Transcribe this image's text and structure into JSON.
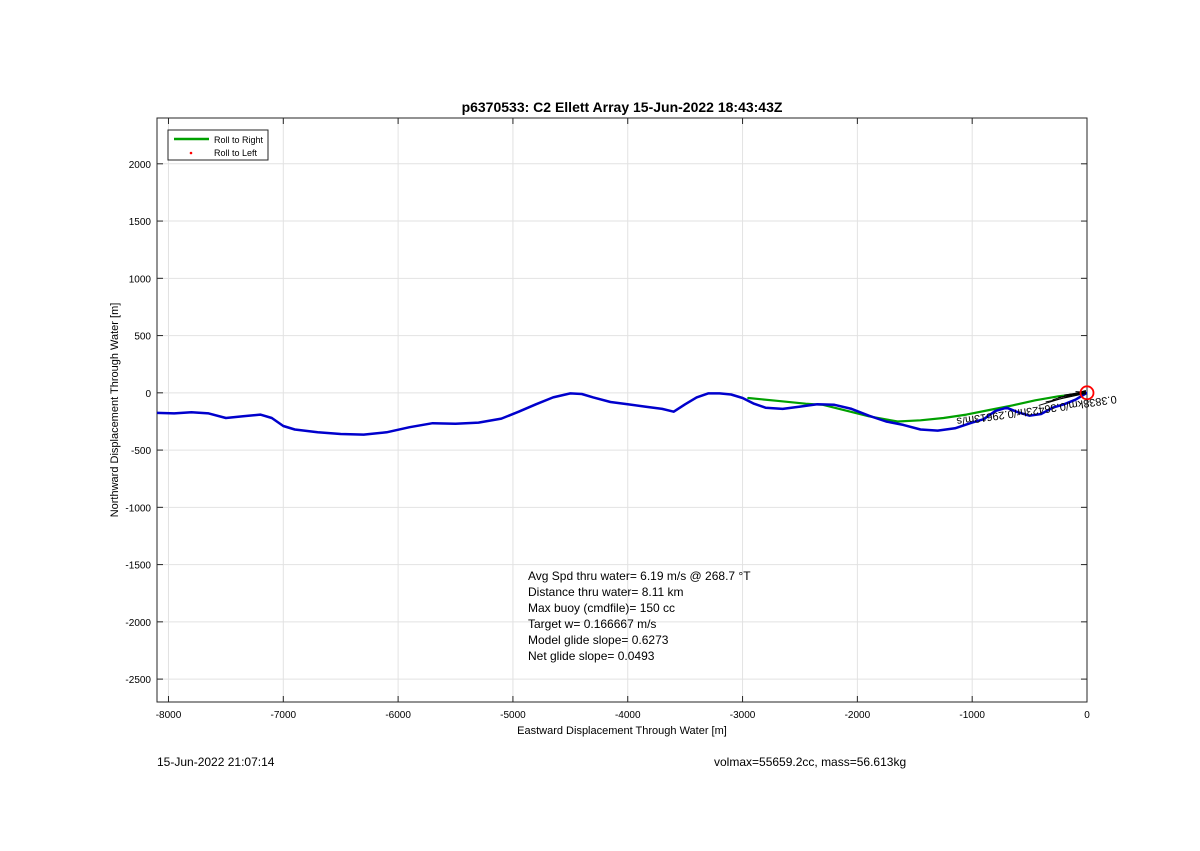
{
  "chart_data": {
    "type": "line",
    "title": "p6370533: C2 Ellett Array 15-Jun-2022 18:43:43Z",
    "xlabel": "Eastward Displacement Through Water [m]",
    "ylabel": "Northward Displacement Through Water [m]",
    "xlim": [
      -8100,
      0
    ],
    "ylim": [
      -2700,
      2400
    ],
    "xticks": [
      -8000,
      -7000,
      -6000,
      -5000,
      -4000,
      -3000,
      -2000,
      -1000,
      0
    ],
    "yticks": [
      -2500,
      -2000,
      -1500,
      -1000,
      -500,
      0,
      500,
      1000,
      1500,
      2000
    ],
    "grid": true,
    "legend_position": "top-left",
    "legend": [
      {
        "label": "Roll to Right",
        "color": "#00a000",
        "style": "line"
      },
      {
        "label": "Roll to Left",
        "color": "#ff0000",
        "style": "dot"
      }
    ],
    "series": [
      {
        "name": "Roll to Right",
        "color": "#00a000",
        "x": [
          -2950,
          -2700,
          -2450,
          -2300,
          -2100,
          -1900,
          -1650,
          -1450,
          -1250,
          -1050,
          -850,
          -650,
          -450,
          -250,
          -80
        ],
        "y": [
          -45,
          -70,
          -95,
          -105,
          -155,
          -205,
          -250,
          -240,
          -220,
          -190,
          -150,
          -110,
          -65,
          -30,
          -10
        ]
      },
      {
        "name": "track",
        "color": "#0000cc",
        "x": [
          -8100,
          -7950,
          -7800,
          -7650,
          -7500,
          -7350,
          -7200,
          -7100,
          -7000,
          -6900,
          -6700,
          -6500,
          -6300,
          -6100,
          -5900,
          -5700,
          -5500,
          -5300,
          -5100,
          -4950,
          -4800,
          -4650,
          -4500,
          -4400,
          -4300,
          -4150,
          -4000,
          -3850,
          -3700,
          -3600,
          -3500,
          -3400,
          -3300,
          -3200,
          -3100,
          -3000,
          -2900,
          -2800,
          -2650,
          -2500,
          -2350,
          -2200,
          -2050,
          -1900,
          -1750,
          -1600,
          -1450,
          -1300,
          -1150,
          -1000,
          -900,
          -800,
          -700,
          -600,
          -500,
          -400,
          -300,
          -200,
          -100,
          0
        ],
        "y": [
          -175,
          -180,
          -170,
          -180,
          -220,
          -205,
          -190,
          -220,
          -290,
          -320,
          -345,
          -360,
          -365,
          -345,
          -300,
          -265,
          -270,
          -260,
          -225,
          -165,
          -100,
          -40,
          -5,
          -10,
          -40,
          -80,
          -100,
          -120,
          -140,
          -165,
          -100,
          -40,
          -5,
          -5,
          -15,
          -45,
          -95,
          -130,
          -140,
          -120,
          -100,
          -105,
          -140,
          -200,
          -250,
          -280,
          -320,
          -330,
          -310,
          -260,
          -230,
          -160,
          -130,
          -170,
          -200,
          -185,
          -130,
          -100,
          -60,
          0
        ]
      }
    ],
    "start_marker": {
      "x": 0,
      "y": 0,
      "color": "#ff0000"
    },
    "current_label": "0.3838km/0.36423hr/0.29613m/s",
    "stats_lines": [
      "Avg Spd thru water=  6.19 m/s @ 268.7 °T",
      "Distance thru water=  8.11 km",
      "Max buoy (cmdfile)= 150 cc",
      "Target w= 0.166667 m/s",
      "Model glide slope= 0.6273",
      "Net glide slope= 0.0493"
    ]
  },
  "footer": {
    "timestamp": "15-Jun-2022 21:07:14",
    "vol_mass": "volmax=55659.2cc, mass=56.613kg"
  }
}
